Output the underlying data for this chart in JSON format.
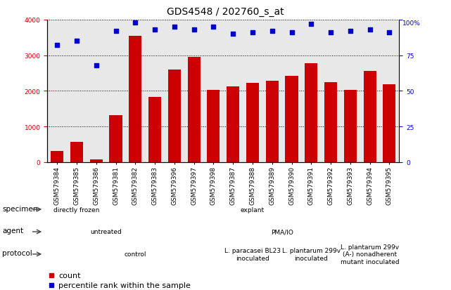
{
  "title": "GDS4548 / 202760_s_at",
  "samples": [
    "GSM579384",
    "GSM579385",
    "GSM579386",
    "GSM579381",
    "GSM579382",
    "GSM579383",
    "GSM579396",
    "GSM579397",
    "GSM579398",
    "GSM579387",
    "GSM579388",
    "GSM579389",
    "GSM579390",
    "GSM579391",
    "GSM579392",
    "GSM579393",
    "GSM579394",
    "GSM579395"
  ],
  "counts": [
    320,
    570,
    85,
    1310,
    3540,
    1840,
    2600,
    2960,
    2020,
    2130,
    2220,
    2290,
    2430,
    2780,
    2240,
    2030,
    2560,
    2190
  ],
  "percentiles": [
    82,
    85,
    68,
    92,
    98,
    93,
    95,
    93,
    95,
    90,
    91,
    92,
    91,
    97,
    91,
    92,
    93,
    91
  ],
  "bar_color": "#cc0000",
  "dot_color": "#0000cc",
  "ylim_left": [
    0,
    4000
  ],
  "ylim_right": [
    0,
    100
  ],
  "yticks_left": [
    0,
    1000,
    2000,
    3000,
    4000
  ],
  "yticks_right": [
    0,
    25,
    50,
    75,
    100
  ],
  "specimen_labels": [
    {
      "text": "directly frozen",
      "start": 0,
      "end": 3,
      "color": "#90ee90"
    },
    {
      "text": "explant",
      "start": 3,
      "end": 18,
      "color": "#55cc55"
    }
  ],
  "agent_labels": [
    {
      "text": "untreated",
      "start": 0,
      "end": 6,
      "color": "#bbaaee"
    },
    {
      "text": "PMA/IO",
      "start": 6,
      "end": 18,
      "color": "#7766bb"
    }
  ],
  "protocol_labels": [
    {
      "text": "control",
      "start": 0,
      "end": 9,
      "color": "#ffdddd"
    },
    {
      "text": "L. paracasei BL23\ninoculated",
      "start": 9,
      "end": 12,
      "color": "#ffbbbb"
    },
    {
      "text": "L. plantarum 299v\ninoculated",
      "start": 12,
      "end": 15,
      "color": "#ffaaaa"
    },
    {
      "text": "L. plantarum 299v\n(A-) nonadherent\nmutant inoculated",
      "start": 15,
      "end": 18,
      "color": "#ffaaaa"
    }
  ],
  "title_fontsize": 10,
  "tick_fontsize": 6.5,
  "label_fontsize": 8,
  "row_label_fontsize": 7.5,
  "annotation_fontsize": 6.5,
  "background_color": "#ffffff",
  "plot_bg_color": "#e8e8e8"
}
